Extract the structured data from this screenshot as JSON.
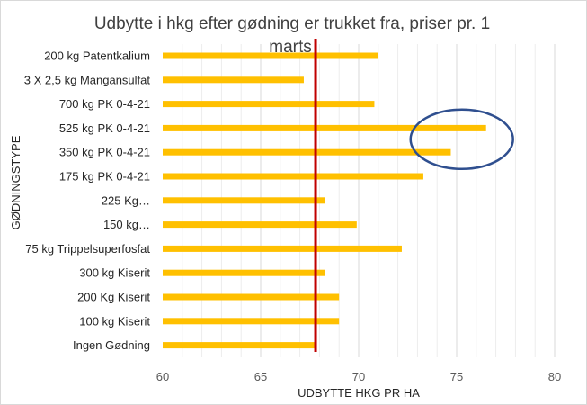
{
  "chart_data": {
    "type": "bar",
    "orientation": "horizontal",
    "title_lines": [
      "Udbytte i hkg efter gødning er trukket fra, priser pr. 1",
      "marts"
    ],
    "xlabel": "UDBYTTE HKG PR HA",
    "ylabel": "GØDNINGSTYPE",
    "xlim": [
      60,
      80
    ],
    "xticks": [
      60,
      65,
      70,
      75,
      80
    ],
    "grid": "vertical",
    "categories": [
      "200 kg Patentkalium",
      "3 X 2,5 kg Mangansulfat",
      "700 kg PK 0-4-21",
      "525 kg PK 0-4-21",
      "350 kg PK 0-4-21",
      "175 kg PK 0-4-21",
      "225 Kg…",
      "150 kg…",
      "75 kg Trippelsuperfosfat",
      "300 kg Kiserit",
      "200 Kg Kiserit",
      "100 kg Kiserit",
      "Ingen Gødning"
    ],
    "values": [
      71.0,
      67.2,
      70.8,
      76.5,
      74.7,
      73.3,
      68.3,
      69.9,
      72.2,
      68.3,
      69.0,
      69.0,
      67.8
    ],
    "reference_line": {
      "value": 67.8,
      "color": "#c00000"
    },
    "highlight": {
      "shape": "ellipse",
      "categories": [
        "525 kg PK 0-4-21",
        "350 kg PK 0-4-21"
      ],
      "color": "#2f4f8f"
    },
    "bar_color": "#ffc000"
  }
}
